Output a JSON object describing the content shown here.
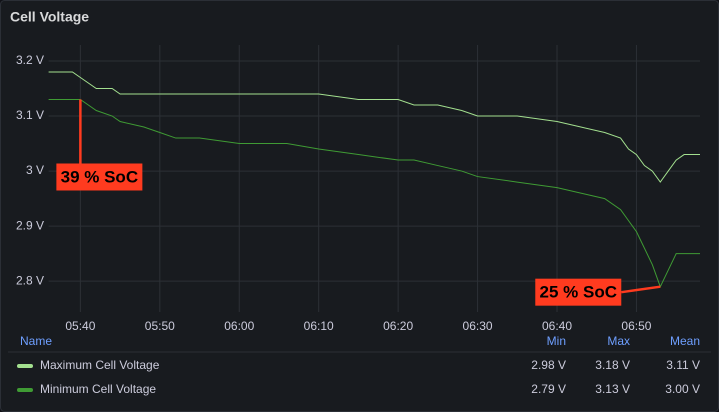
{
  "chart_data": {
    "type": "line",
    "title": "Cell Voltage",
    "x": [
      "05:36",
      "05:39",
      "05:40",
      "05:41",
      "05:42",
      "05:44",
      "05:45",
      "05:48",
      "05:50",
      "05:52",
      "05:55",
      "06:00",
      "06:05",
      "06:06",
      "06:10",
      "06:15",
      "06:20",
      "06:22",
      "06:25",
      "06:28",
      "06:30",
      "06:35",
      "06:40",
      "06:43",
      "06:46",
      "06:48",
      "06:49",
      "06:50",
      "06:51",
      "06:52",
      "06:53",
      "06:54",
      "06:55",
      "06:56",
      "06:58"
    ],
    "series": [
      {
        "name": "Maximum Cell Voltage",
        "color": "#a3e08f",
        "values": [
          3.18,
          3.18,
          3.17,
          3.16,
          3.15,
          3.15,
          3.14,
          3.14,
          3.14,
          3.14,
          3.14,
          3.14,
          3.14,
          3.14,
          3.14,
          3.13,
          3.13,
          3.12,
          3.12,
          3.11,
          3.1,
          3.1,
          3.09,
          3.08,
          3.07,
          3.06,
          3.04,
          3.03,
          3.01,
          3.0,
          2.98,
          3.0,
          3.02,
          3.03,
          3.03
        ],
        "stats": [
          2.98,
          3.18,
          3.11
        ],
        "stats_labels": [
          "2.98 V",
          "3.18 V",
          "3.11 V"
        ]
      },
      {
        "name": "Minimum Cell Voltage",
        "color": "#3f9b34",
        "values": [
          3.13,
          3.13,
          3.13,
          3.12,
          3.11,
          3.1,
          3.09,
          3.08,
          3.07,
          3.06,
          3.06,
          3.05,
          3.05,
          3.05,
          3.04,
          3.03,
          3.02,
          3.02,
          3.01,
          3.0,
          2.99,
          2.98,
          2.97,
          2.96,
          2.95,
          2.93,
          2.91,
          2.89,
          2.86,
          2.83,
          2.79,
          2.82,
          2.85,
          2.85,
          2.85
        ],
        "stats": [
          2.79,
          3.13,
          3.0
        ],
        "stats_labels": [
          "2.79 V",
          "3.13 V",
          "3.00 V"
        ]
      }
    ],
    "xlim": [
      "05:36",
      "06:58"
    ],
    "xticks": [
      "05:40",
      "05:50",
      "06:00",
      "06:10",
      "06:20",
      "06:30",
      "06:40",
      "06:50"
    ],
    "ylim": [
      2.744,
      3.229
    ],
    "yticks": [
      {
        "value": 2.8,
        "label": "2.8 V"
      },
      {
        "value": 2.9,
        "label": "2.9 V"
      },
      {
        "value": 3,
        "label": "3 V"
      },
      {
        "value": 3.1,
        "label": "3.1 V"
      },
      {
        "value": 3.2,
        "label": "3.2 V"
      }
    ],
    "grid": true,
    "legend_columns": [
      "Name",
      "Min",
      "Max",
      "Mean"
    ],
    "annotations": [
      {
        "text": "39 % SoC",
        "x": "05:40",
        "y": 3.13
      },
      {
        "text": "25 % SoC",
        "x": "06:53",
        "y": 2.79
      }
    ]
  }
}
